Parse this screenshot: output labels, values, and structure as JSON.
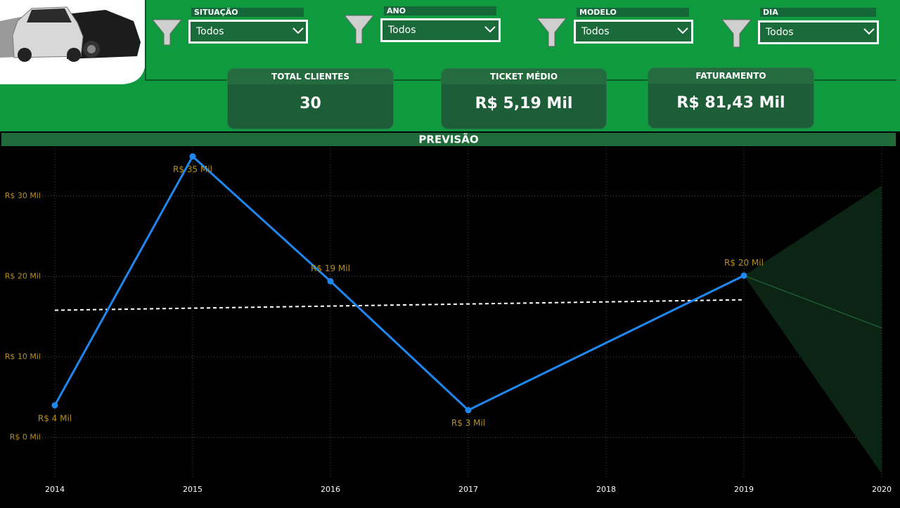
{
  "filters": [
    {
      "label": "SITUAÇÃO",
      "value": "Todos"
    },
    {
      "label": "ANO",
      "value": "Todos"
    },
    {
      "label": "MODELO",
      "value": "Todos"
    },
    {
      "label": "DIA",
      "value": "Todos"
    }
  ],
  "kpis": [
    {
      "title": "TOTAL CLIENTES",
      "value": "30"
    },
    {
      "title": "TICKET MÉDIO",
      "value": "R$ 5,19 Mil"
    },
    {
      "title": "FATURAMENTO",
      "value": "R$ 81,43 Mil"
    }
  ],
  "chart_data": {
    "type": "line",
    "title": "PREVISÃO",
    "series": [
      {
        "color": "#1e88f0",
        "x": [
          2014,
          2015,
          2016,
          2017,
          2019
        ],
        "values": [
          4.0,
          34.9,
          19.4,
          3.4,
          20.1
        ],
        "value_labels": [
          "R$ 4 Mil",
          "R$ 35 Mil",
          "R$ 19 Mil",
          "R$ 3 Mil",
          "R$ 20 Mil"
        ]
      }
    ],
    "trend": {
      "color": "#ffffff",
      "x": [
        2014,
        2019
      ],
      "values": [
        15.8,
        17.1
      ]
    },
    "forecast": {
      "color": "#1f5a30",
      "band_color": "#0b2413",
      "x": [
        2019,
        2020
      ],
      "values": [
        20.1,
        13.6
      ],
      "upper": [
        20.1,
        31.3
      ],
      "lower": [
        20.1,
        -4.5
      ]
    },
    "xlim": [
      2014,
      2020
    ],
    "xticks": [
      2014,
      2015,
      2016,
      2017,
      2018,
      2019,
      2020
    ],
    "ylim": [
      -5,
      36
    ],
    "yticks": [
      {
        "value": 0,
        "label": "R$ 0 Mil"
      },
      {
        "value": 10,
        "label": "R$ 10 Mil"
      },
      {
        "value": 20,
        "label": "R$ 20 Mil"
      },
      {
        "value": 30,
        "label": "R$ 30 Mil"
      }
    ],
    "grid": true
  }
}
